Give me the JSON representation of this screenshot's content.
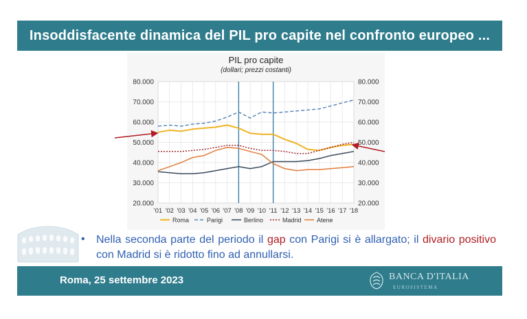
{
  "slide": {
    "title": "Insoddisfacente dinamica del PIL pro capite nel confronto europeo ...",
    "footer_date": "Roma, 25 settembre 2023",
    "logo_name": "BANCA D'ITALIA",
    "logo_sub": "EUROSISTEMA",
    "bullet": "•",
    "note_parts": [
      "Nella seconda parte del periodo il ",
      "gap",
      " con Parigi si è allargato; il ",
      "divario positivo",
      " con Madrid si è ridotto fino ad annullarsi."
    ],
    "colors": {
      "band": "#2e7c8c",
      "text_blue": "#2f5fb0",
      "text_red": "#b01c24",
      "arrow": "#b01c24"
    }
  },
  "chart_data": {
    "type": "line",
    "title": "PIL pro capite",
    "subtitle": "(dollari; prezzi costanti)",
    "ylim": [
      20000,
      80000
    ],
    "yticks": [
      "20.000",
      "30.000",
      "40.000",
      "50.000",
      "60.000",
      "70.000",
      "80.000"
    ],
    "x": [
      "'01",
      "'02",
      "'03",
      "'04",
      "'05",
      "'06",
      "'07",
      "'08",
      "'09",
      "'10",
      "'11",
      "'12",
      "'13",
      "'14",
      "'15",
      "'16",
      "'17",
      "'18"
    ],
    "vlines": [
      "'08",
      "'11"
    ],
    "legend_position": "bottom",
    "series": [
      {
        "name": "Roma",
        "color": "#f0b323",
        "dash": "solid",
        "width": 2,
        "values": [
          55000,
          56000,
          55500,
          56500,
          57000,
          57500,
          58500,
          57000,
          54500,
          54000,
          54000,
          51500,
          49500,
          46500,
          46000,
          47500,
          48500,
          49000
        ]
      },
      {
        "name": "Parigi",
        "color": "#5a88b8",
        "dash": "5,3",
        "width": 1.5,
        "values": [
          58000,
          58500,
          58000,
          59000,
          59500,
          60500,
          62500,
          65000,
          62000,
          65000,
          64500,
          65000,
          65500,
          66000,
          66500,
          68000,
          69500,
          71000
        ]
      },
      {
        "name": "Berlino",
        "color": "#3a4a5a",
        "dash": "solid",
        "width": 1.5,
        "values": [
          35500,
          35000,
          34500,
          34500,
          35000,
          36000,
          37000,
          38000,
          37000,
          38000,
          40500,
          40500,
          40500,
          41000,
          42000,
          43500,
          44500,
          45500
        ]
      },
      {
        "name": "Madrid",
        "color": "#a0242c",
        "dash": "2,2",
        "width": 1.5,
        "values": [
          45500,
          45500,
          45500,
          46000,
          46500,
          47500,
          48500,
          48500,
          47000,
          46000,
          46000,
          45500,
          44500,
          44500,
          46000,
          47500,
          49000,
          50000
        ]
      },
      {
        "name": "Atene",
        "color": "#e07b39",
        "dash": "solid",
        "width": 1.5,
        "values": [
          36000,
          38000,
          40000,
          42500,
          43500,
          46000,
          47500,
          47000,
          45500,
          44000,
          39500,
          37000,
          36000,
          36500,
          36500,
          37000,
          37500,
          38000
        ]
      }
    ]
  }
}
